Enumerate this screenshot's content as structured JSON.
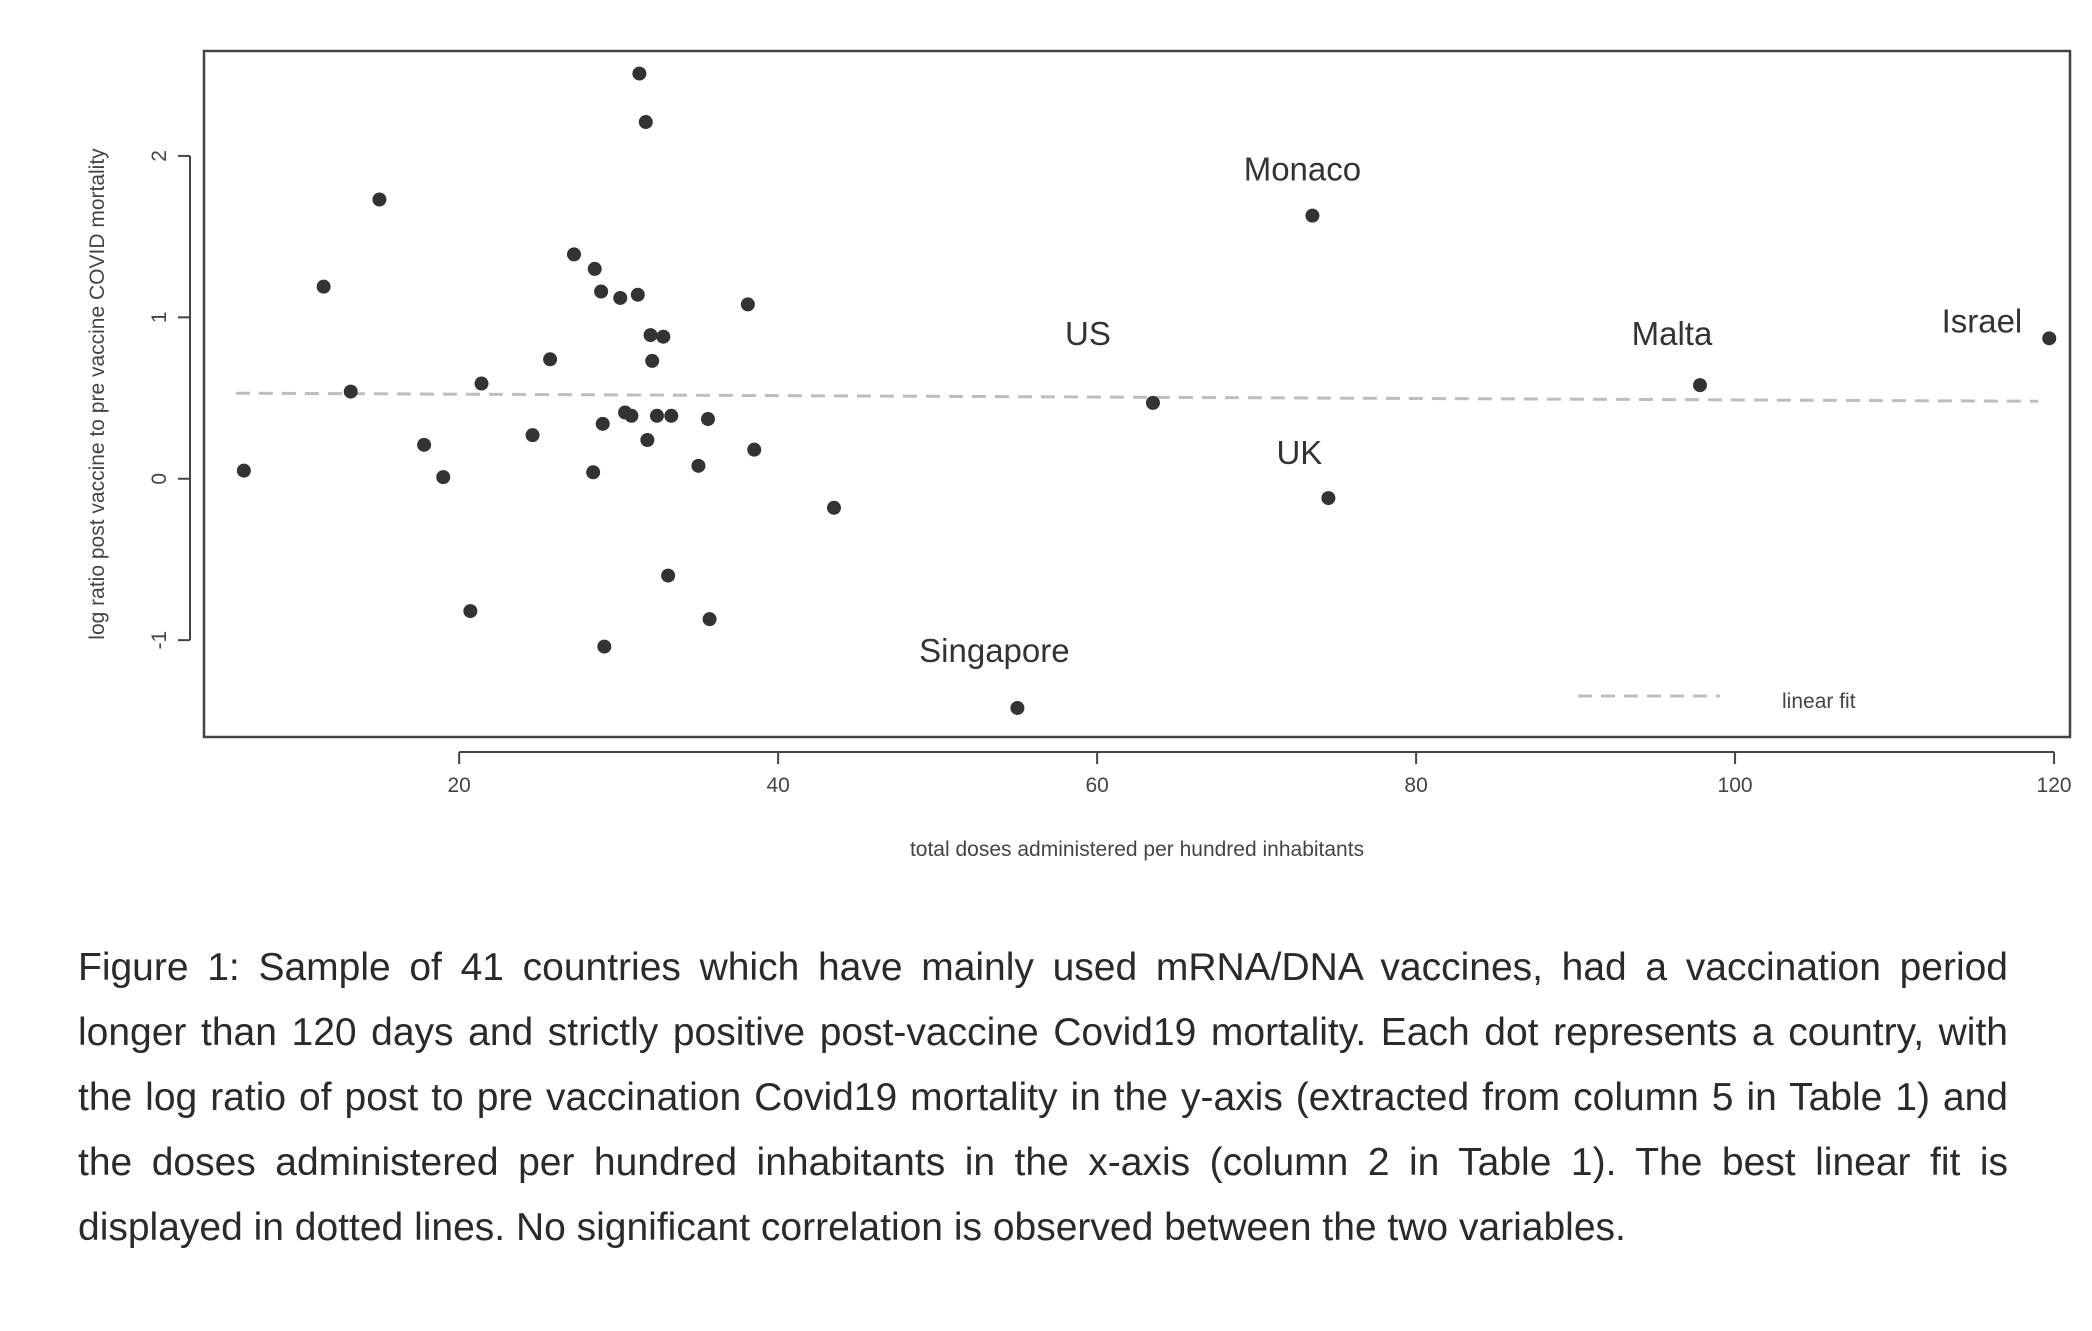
{
  "chart_data": {
    "type": "scatter",
    "xlabel": "total doses administered per hundred inhabitants",
    "ylabel": "log ratio post vaccine to pre vaccine COVID mortality",
    "xlim": [
      4,
      121
    ],
    "ylim": [
      -1.6,
      2.65
    ],
    "x_ticks": [
      20,
      40,
      60,
      80,
      100,
      120
    ],
    "y_ticks": [
      -1,
      0,
      1,
      2
    ],
    "grid": false,
    "legend": {
      "position": "bottom-right",
      "entries": [
        {
          "label": "linear fit",
          "style": "dashed"
        }
      ]
    },
    "fit_line": {
      "label": "linear fit",
      "points": [
        [
          6,
          0.53
        ],
        [
          119,
          0.48
        ]
      ]
    },
    "points": [
      {
        "x": 6.5,
        "y": 0.05
      },
      {
        "x": 11.5,
        "y": 1.19
      },
      {
        "x": 13.2,
        "y": 0.54
      },
      {
        "x": 15.0,
        "y": 1.73
      },
      {
        "x": 17.8,
        "y": 0.21
      },
      {
        "x": 19.0,
        "y": 0.01
      },
      {
        "x": 20.7,
        "y": -0.82
      },
      {
        "x": 21.4,
        "y": 0.59
      },
      {
        "x": 24.6,
        "y": 0.27
      },
      {
        "x": 25.7,
        "y": 0.74
      },
      {
        "x": 27.2,
        "y": 1.39
      },
      {
        "x": 28.4,
        "y": 0.04
      },
      {
        "x": 28.5,
        "y": 1.3
      },
      {
        "x": 28.9,
        "y": 1.16
      },
      {
        "x": 29.0,
        "y": 0.34
      },
      {
        "x": 29.1,
        "y": -1.04
      },
      {
        "x": 30.1,
        "y": 1.12
      },
      {
        "x": 30.4,
        "y": 0.41
      },
      {
        "x": 30.8,
        "y": 0.39
      },
      {
        "x": 31.2,
        "y": 1.14
      },
      {
        "x": 31.3,
        "y": 2.51
      },
      {
        "x": 31.7,
        "y": 2.21
      },
      {
        "x": 31.8,
        "y": 0.24
      },
      {
        "x": 32.0,
        "y": 0.89
      },
      {
        "x": 32.1,
        "y": 0.73
      },
      {
        "x": 32.4,
        "y": 0.39
      },
      {
        "x": 32.8,
        "y": 0.88
      },
      {
        "x": 33.1,
        "y": -0.6
      },
      {
        "x": 33.3,
        "y": 0.39
      },
      {
        "x": 35.0,
        "y": 0.08
      },
      {
        "x": 35.6,
        "y": 0.37
      },
      {
        "x": 35.7,
        "y": -0.87
      },
      {
        "x": 38.1,
        "y": 1.08
      },
      {
        "x": 38.5,
        "y": 0.18
      },
      {
        "x": 43.5,
        "y": -0.18
      },
      {
        "x": 55.0,
        "y": -1.42,
        "label": "Singapore"
      },
      {
        "x": 63.5,
        "y": 0.47,
        "label": "US"
      },
      {
        "x": 73.5,
        "y": 1.63,
        "label": "Monaco"
      },
      {
        "x": 74.5,
        "y": -0.12,
        "label": "UK"
      },
      {
        "x": 97.8,
        "y": 0.58,
        "label": "Malta"
      },
      {
        "x": 119.7,
        "y": 0.87,
        "label": "Israel"
      }
    ]
  },
  "caption": "Figure 1: Sample of 41 countries which have mainly used mRNA/DNA vaccines, had a vaccination period longer than 120 days and strictly positive post-vaccine Covid19 mortality. Each dot represents a country, with the log ratio of post to pre vaccination Covid19 mortality in the y-axis (extracted from column 5 in Table 1) and the doses administered per hundred inhabitants in the x-axis (column 2 in Table 1). The best linear fit is displayed in dotted lines. No significant correlation is observed between the two variables.",
  "colors": {
    "point": "#333333",
    "fit_line": "#bdbdbd",
    "axis": "#444444"
  }
}
